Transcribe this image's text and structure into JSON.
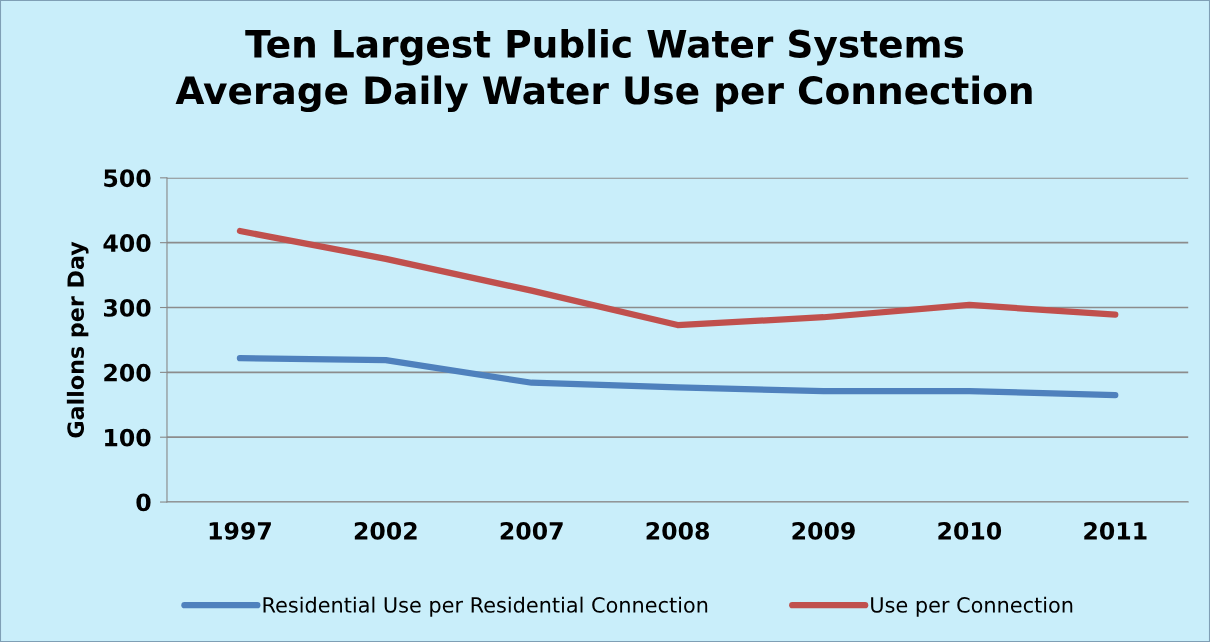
{
  "chart_data": {
    "type": "line",
    "title": "Ten Largest Public Water Systems\nAverage Daily Water Use per Connection",
    "ylabel": "Gallons per Day",
    "categories": [
      "1997",
      "2002",
      "2007",
      "2008",
      "2009",
      "2010",
      "2011"
    ],
    "series": [
      {
        "name": "Residential Use per Residential Connection",
        "color": "#4f81bd",
        "values": [
          222,
          219,
          184,
          177,
          171,
          171,
          165
        ]
      },
      {
        "name": "Use per Connection",
        "color": "#c0504d",
        "values": [
          418,
          375,
          326,
          273,
          285,
          304,
          289
        ]
      }
    ],
    "ylim": [
      0,
      500
    ],
    "yticks": [
      0,
      100,
      200,
      300,
      400,
      500
    ],
    "grid": "y",
    "legend": "bottom",
    "marker": "none",
    "line_style": "solid"
  }
}
